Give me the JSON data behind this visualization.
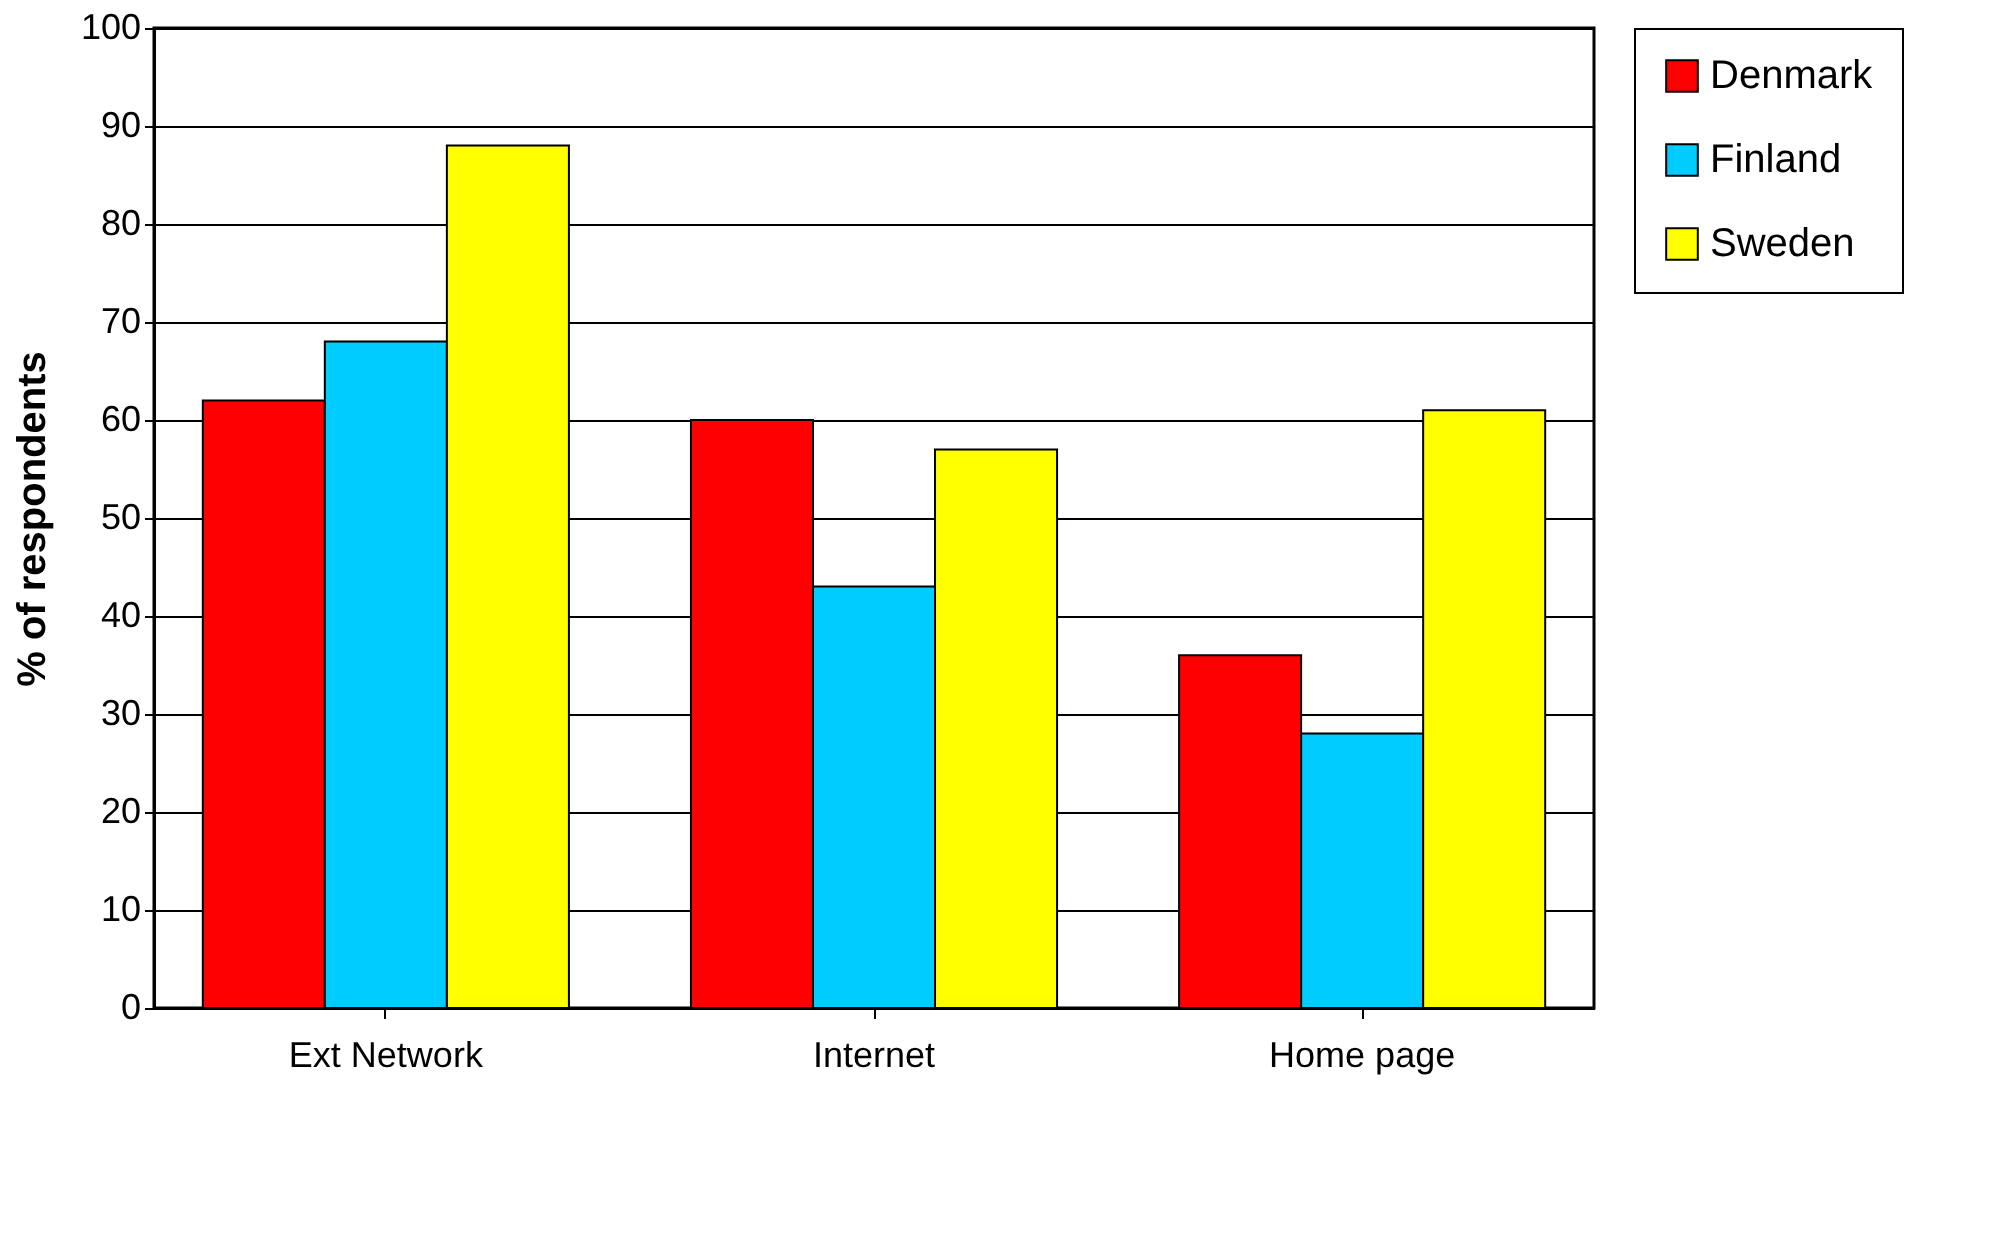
{
  "chart_data": {
    "type": "bar",
    "ylabel": "% of respondents",
    "categories": [
      "Ext Network",
      "Internet",
      "Home page"
    ],
    "series": [
      {
        "name": "Denmark",
        "color": "#ff0000",
        "values": [
          62,
          60,
          36
        ]
      },
      {
        "name": "Finland",
        "color": "#00ccff",
        "values": [
          68,
          43,
          28
        ]
      },
      {
        "name": "Sweden",
        "color": "#ffff00",
        "values": [
          88,
          57,
          61
        ]
      }
    ],
    "ylim": [
      0,
      100
    ],
    "yticks": [
      0,
      10,
      20,
      30,
      40,
      50,
      60,
      70,
      80,
      90,
      100
    ],
    "grid": "y",
    "legend": "right"
  }
}
